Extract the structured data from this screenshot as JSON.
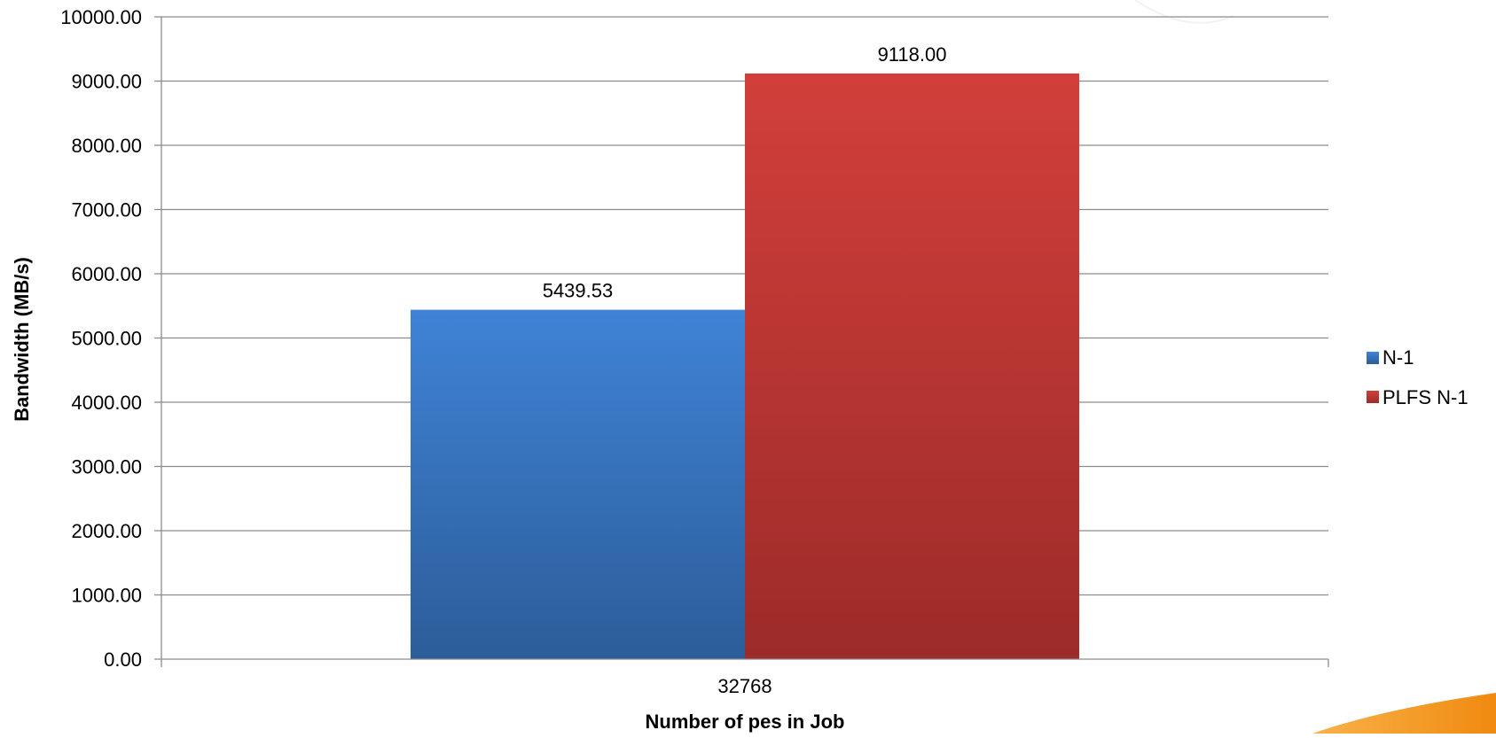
{
  "chart_data": {
    "type": "bar",
    "title": "",
    "xlabel": "Number of pes in Job",
    "ylabel": "Bandwidth (MB/s)",
    "categories": [
      "32768"
    ],
    "series": [
      {
        "name": "N-1",
        "values": [
          5439.53
        ],
        "value_labels": [
          "5439.53"
        ],
        "color": "#3a7bcc"
      },
      {
        "name": "PLFS N-1",
        "values": [
          9118.0
        ],
        "value_labels": [
          "9118.00"
        ],
        "color": "#c73a37"
      }
    ],
    "ylim": [
      0,
      10000
    ],
    "yticks": [
      0,
      1000,
      2000,
      3000,
      4000,
      5000,
      6000,
      7000,
      8000,
      9000,
      10000
    ],
    "ytick_labels": [
      "0.00",
      "1000.00",
      "2000.00",
      "3000.00",
      "4000.00",
      "5000.00",
      "6000.00",
      "7000.00",
      "8000.00",
      "9000.00",
      "10000.00"
    ],
    "grid": true,
    "legend_position": "right"
  },
  "colors": {
    "gridline": "#8c8c8c",
    "axis": "#8c8c8c",
    "text": "#000000",
    "accent_orange": "#f59a1c"
  }
}
